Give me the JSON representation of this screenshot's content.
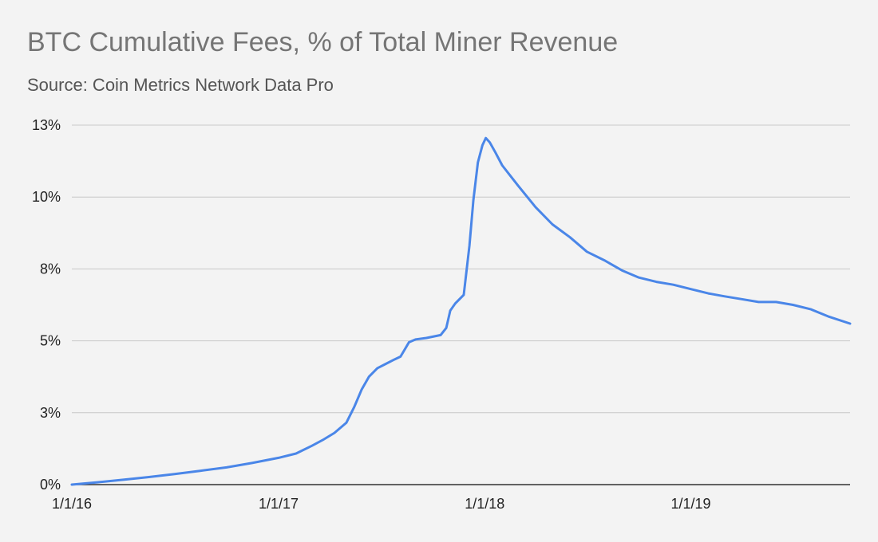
{
  "chart_data": {
    "type": "line",
    "title": "BTC Cumulative Fees, % of Total Miner Revenue",
    "subtitle": "Source: Coin Metrics Network Data Pro",
    "xlabel": "",
    "ylabel": "",
    "x_ticks": [
      "1/1/16",
      "1/1/17",
      "1/1/18",
      "1/1/19"
    ],
    "y_ticks": [
      "0%",
      "3%",
      "5%",
      "8%",
      "10%",
      "13%"
    ],
    "ylim": [
      0,
      12.5
    ],
    "xlim": [
      "2016-01-01",
      "2019-10-10"
    ],
    "grid": true,
    "legend": "none",
    "line_color": "#4a86e8",
    "series": [
      {
        "x": [
          "2016-01-01",
          "2016-02-15",
          "2016-04-01",
          "2016-05-15",
          "2016-07-01",
          "2016-08-15",
          "2016-10-01",
          "2016-11-15",
          "2017-01-01",
          "2017-02-01",
          "2017-03-01",
          "2017-03-20",
          "2017-04-10",
          "2017-05-01",
          "2017-05-15",
          "2017-05-28",
          "2017-06-10",
          "2017-06-25",
          "2017-07-10",
          "2017-07-25",
          "2017-08-05",
          "2017-08-20",
          "2017-09-01",
          "2017-09-20",
          "2017-10-15",
          "2017-10-25",
          "2017-11-01",
          "2017-11-10",
          "2017-11-25",
          "2017-12-05",
          "2017-12-12",
          "2017-12-20",
          "2017-12-28",
          "2018-01-03",
          "2018-01-10",
          "2018-01-20",
          "2018-02-01",
          "2018-03-01",
          "2018-04-01",
          "2018-05-01",
          "2018-06-01",
          "2018-07-01",
          "2018-08-01",
          "2018-09-01",
          "2018-10-01",
          "2018-11-01",
          "2018-12-01",
          "2019-01-01",
          "2019-02-01",
          "2019-03-01",
          "2019-04-01",
          "2019-05-01",
          "2019-06-01",
          "2019-07-01",
          "2019-08-01",
          "2019-09-01",
          "2019-10-10"
        ],
        "values": [
          0.0,
          0.08,
          0.17,
          0.26,
          0.37,
          0.48,
          0.6,
          0.75,
          0.93,
          1.08,
          1.35,
          1.55,
          1.8,
          2.15,
          2.7,
          3.3,
          3.75,
          4.05,
          4.2,
          4.35,
          4.45,
          4.95,
          5.05,
          5.1,
          5.2,
          5.45,
          6.05,
          6.3,
          6.6,
          8.3,
          9.9,
          11.2,
          11.8,
          12.05,
          11.9,
          11.55,
          11.1,
          10.4,
          9.65,
          9.05,
          8.6,
          8.1,
          7.8,
          7.45,
          7.2,
          7.05,
          6.95,
          6.8,
          6.65,
          6.55,
          6.45,
          6.35,
          6.35,
          6.25,
          6.1,
          5.85,
          5.6
        ]
      }
    ]
  }
}
